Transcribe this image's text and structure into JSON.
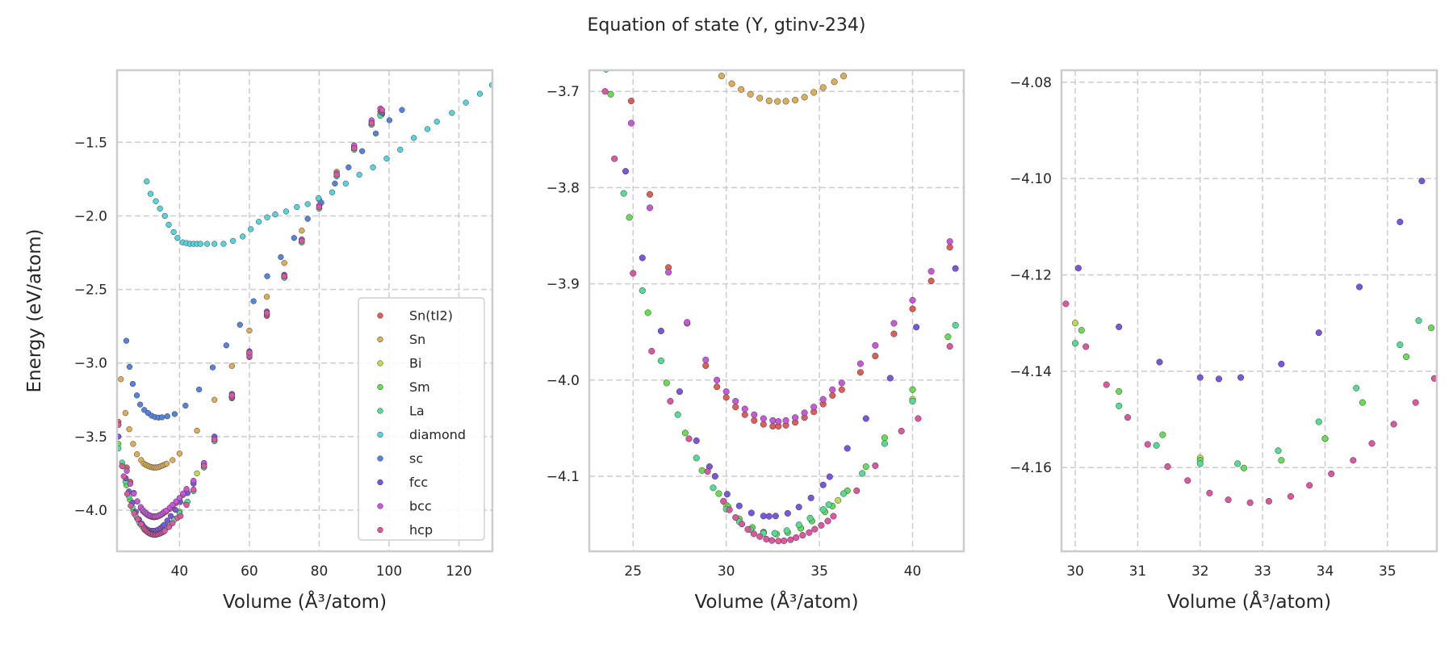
{
  "chart_data": {
    "type": "scatter",
    "title": "Equation of state (Y, gtinv-234)",
    "legend_placement": "lower-right (left panel)",
    "grid": true,
    "series": [
      {
        "name": "Sn(tI2)",
        "color": "#db5f57",
        "x": [
          22.5,
          24.9,
          25.9,
          26.9,
          27.9,
          28.9,
          29.5,
          30.0,
          30.5,
          31.0,
          31.5,
          32.0,
          32.5,
          32.8,
          33.2,
          33.7,
          34.2,
          34.7,
          35.2,
          35.7,
          36.2,
          37.2,
          38.0,
          39.0,
          40.0,
          41.0,
          42.0,
          44,
          47,
          50,
          55,
          60,
          65,
          70,
          75,
          80,
          85,
          90,
          95,
          97.5
        ],
        "y": [
          -3.4,
          -3.71,
          -3.807,
          -3.883,
          -3.941,
          -3.985,
          -4.007,
          -4.018,
          -4.028,
          -4.036,
          -4.042,
          -4.046,
          -4.048,
          -4.048,
          -4.047,
          -4.044,
          -4.039,
          -4.033,
          -4.025,
          -4.016,
          -4.01,
          -3.992,
          -3.975,
          -3.952,
          -3.926,
          -3.897,
          -3.862,
          -3.81,
          -3.69,
          -3.53,
          -3.24,
          -2.96,
          -2.68,
          -2.42,
          -2.17,
          -1.94,
          -1.72,
          -1.53,
          -1.36,
          -1.29
        ]
      },
      {
        "name": "Sn",
        "color": "#dbae57",
        "x": [
          23.2,
          24.5,
          25.6,
          26.7,
          27.8,
          29.0,
          29.75,
          30.3,
          30.8,
          31.3,
          31.8,
          32.3,
          32.75,
          33.2,
          33.7,
          34.2,
          34.7,
          35.2,
          35.8,
          36.3,
          38,
          40,
          45,
          50,
          55,
          60,
          65,
          70,
          75,
          80,
          85,
          90,
          95,
          98
        ],
        "y": [
          -3.11,
          -3.34,
          -3.45,
          -3.55,
          -3.62,
          -3.66,
          -3.684,
          -3.692,
          -3.698,
          -3.703,
          -3.707,
          -3.7098,
          -3.7104,
          -3.7102,
          -3.709,
          -3.706,
          -3.701,
          -3.696,
          -3.69,
          -3.684,
          -3.66,
          -3.615,
          -3.46,
          -3.25,
          -3.02,
          -2.78,
          -2.55,
          -2.32,
          -2.1,
          -1.89,
          -1.7,
          -1.53,
          -1.38,
          -1.31
        ]
      },
      {
        "name": "Bi",
        "color": "#b9db57",
        "x": [
          30,
          32,
          34,
          36,
          40,
          45,
          50,
          55,
          60,
          65,
          70,
          75,
          80,
          85,
          90,
          95,
          97.8
        ],
        "y": [
          -4.13,
          -4.158,
          -4.154,
          -4.125,
          -4.02,
          -3.75,
          -3.52,
          -3.23,
          -2.93,
          -2.67,
          -2.42,
          -2.18,
          -1.95,
          -1.73,
          -1.54,
          -1.38,
          -1.31
        ]
      },
      {
        "name": "Sm",
        "color": "#69db57",
        "x": [
          22.5,
          23.8,
          24.8,
          25.8,
          26.8,
          27.8,
          28.7,
          29.6,
          30.1,
          30.7,
          31.4,
          32.0,
          32.7,
          33.3,
          34.0,
          34.6,
          35.3,
          35.7,
          36.5,
          37.5,
          38.5,
          40.0,
          41.9,
          44,
          47,
          50,
          55,
          60,
          65,
          70,
          75,
          80,
          85,
          90,
          95,
          97.5
        ],
        "y": [
          -3.55,
          -3.703,
          -3.831,
          -3.93,
          -4.003,
          -4.055,
          -4.094,
          -4.118,
          -4.1315,
          -4.1442,
          -4.1532,
          -4.1585,
          -4.1601,
          -4.1585,
          -4.154,
          -4.1465,
          -4.137,
          -4.131,
          -4.115,
          -4.09,
          -4.06,
          -4.01,
          -3.955,
          -3.87,
          -3.71,
          -3.53,
          -3.23,
          -2.94,
          -2.67,
          -2.42,
          -2.18,
          -1.95,
          -1.73,
          -1.55,
          -1.38,
          -1.31
        ]
      },
      {
        "name": "La",
        "color": "#57db94",
        "x": [
          22.5,
          23.55,
          24.5,
          25.5,
          26.5,
          27.4,
          28.4,
          29.3,
          30.0,
          30.7,
          31.3,
          32.0,
          32.6,
          33.25,
          33.9,
          34.5,
          35.2,
          35.5,
          36.3,
          37.3,
          38.5,
          40.0,
          42.3,
          44,
          47,
          50,
          55,
          60,
          65,
          70,
          75,
          80,
          85,
          90,
          95,
          97.5
        ],
        "y": [
          -3.58,
          -3.677,
          -3.806,
          -3.907,
          -3.98,
          -4.036,
          -4.081,
          -4.112,
          -4.1342,
          -4.1472,
          -4.1554,
          -4.1592,
          -4.1592,
          -4.1565,
          -4.1505,
          -4.1435,
          -4.1345,
          -4.1295,
          -4.118,
          -4.097,
          -4.066,
          -4.022,
          -3.943,
          -3.87,
          -3.71,
          -3.53,
          -3.23,
          -2.94,
          -2.67,
          -2.42,
          -2.18,
          -1.95,
          -1.73,
          -1.55,
          -1.38,
          -1.32
        ]
      },
      {
        "name": "diamond",
        "color": "#57d3db",
        "x": [
          30.6,
          31.7,
          33.2,
          34.4,
          35.8,
          36.9,
          38.3,
          39.4,
          40.9,
          42,
          43,
          44,
          45,
          46,
          47.9,
          50,
          52.6,
          55.3,
          58.1,
          60.4,
          62.7,
          65.1,
          67.4,
          70.5,
          73.6,
          76.7,
          79.8,
          83.7,
          87.6,
          91.5,
          95.4,
          99.3,
          103.2,
          107.1,
          111,
          113.7,
          118,
          122,
          126,
          129.5
        ],
        "y": [
          -1.766,
          -1.85,
          -1.9,
          -1.95,
          -2.0,
          -2.06,
          -2.11,
          -2.15,
          -2.18,
          -2.185,
          -2.19,
          -2.19,
          -2.19,
          -2.19,
          -2.19,
          -2.19,
          -2.19,
          -2.17,
          -2.14,
          -2.09,
          -2.04,
          -2.01,
          -1.99,
          -1.97,
          -1.94,
          -1.92,
          -1.88,
          -1.84,
          -1.78,
          -1.72,
          -1.67,
          -1.61,
          -1.55,
          -1.47,
          -1.41,
          -1.36,
          -1.3,
          -1.23,
          -1.17,
          -1.11
        ]
      },
      {
        "name": "sc",
        "color": "#5784db",
        "x": [
          24.75,
          25.68,
          26.6,
          27.78,
          28.72,
          29.9,
          31,
          32,
          33,
          34,
          35,
          36.5,
          38.6,
          41.7,
          45.6,
          49.5,
          53.4,
          57.3,
          61.2,
          65.1,
          69,
          72.8,
          76.7,
          80.6,
          84.5,
          88.4,
          92.3,
          96.2,
          100.1,
          103.7
        ],
        "y": [
          -2.849,
          -3.026,
          -3.142,
          -3.22,
          -3.282,
          -3.319,
          -3.34,
          -3.358,
          -3.368,
          -3.371,
          -3.369,
          -3.362,
          -3.347,
          -3.29,
          -3.18,
          -3.03,
          -2.88,
          -2.74,
          -2.58,
          -2.41,
          -2.28,
          -2.15,
          -2.02,
          -1.91,
          -1.78,
          -1.67,
          -1.56,
          -1.44,
          -1.35,
          -1.28
        ]
      },
      {
        "name": "fcc",
        "color": "#7957db",
        "x": [
          22.5,
          24.6,
          25.5,
          26.5,
          27.5,
          28.4,
          29.1,
          29.4,
          30.05,
          30.7,
          31.35,
          32.0,
          32.3,
          32.65,
          33.3,
          33.9,
          34.55,
          35.2,
          35.55,
          36.5,
          37.5,
          38.8,
          40.2,
          42.3,
          44,
          47,
          50,
          55,
          60,
          65,
          70,
          75,
          80,
          85,
          90,
          95,
          98
        ],
        "y": [
          -3.5,
          -3.783,
          -3.873,
          -3.949,
          -4.012,
          -4.063,
          -4.09,
          -4.1,
          -4.1186,
          -4.1308,
          -4.1381,
          -4.1413,
          -4.1416,
          -4.1413,
          -4.1385,
          -4.132,
          -4.1225,
          -4.109,
          -4.1005,
          -4.071,
          -4.04,
          -3.998,
          -3.945,
          -3.884,
          -3.82,
          -3.68,
          -3.5,
          -3.21,
          -2.92,
          -2.65,
          -2.4,
          -2.16,
          -1.93,
          -1.72,
          -1.54,
          -1.37,
          -1.3
        ]
      },
      {
        "name": "bcc",
        "color": "#c957db",
        "x": [
          22.5,
          24.9,
          25.9,
          26.9,
          27.9,
          28.9,
          29.5,
          30.0,
          30.5,
          31.0,
          31.5,
          32.0,
          32.5,
          32.8,
          33.2,
          33.7,
          34.2,
          34.7,
          35.2,
          35.7,
          36.2,
          37.2,
          38.0,
          39.0,
          40.0,
          41.0,
          42.0,
          44,
          47,
          50,
          55,
          60,
          65,
          70,
          75,
          80,
          85,
          90,
          95,
          97.5
        ],
        "y": [
          -3.42,
          -3.733,
          -3.821,
          -3.888,
          -3.94,
          -3.979,
          -4.0,
          -4.012,
          -4.022,
          -4.03,
          -4.036,
          -4.04,
          -4.042,
          -4.043,
          -4.042,
          -4.039,
          -4.034,
          -4.028,
          -4.02,
          -4.01,
          -4.003,
          -3.983,
          -3.964,
          -3.941,
          -3.917,
          -3.887,
          -3.856,
          -3.8,
          -3.68,
          -3.52,
          -3.23,
          -2.95,
          -2.67,
          -2.41,
          -2.16,
          -1.93,
          -1.71,
          -1.52,
          -1.35,
          -1.27
        ]
      },
      {
        "name": "hcp",
        "color": "#db579e",
        "x": [
          22.5,
          23.5,
          24.0,
          25.0,
          26.0,
          27.0,
          28.0,
          29.0,
          29.85,
          30.17,
          30.5,
          30.84,
          31.16,
          31.48,
          31.8,
          32.15,
          32.45,
          32.8,
          33.1,
          33.45,
          33.75,
          34.1,
          34.45,
          34.75,
          35.1,
          35.45,
          35.75,
          37.0,
          38.0,
          39.4,
          40.3,
          42.0,
          44,
          47,
          50,
          55,
          60,
          65,
          70,
          75,
          80,
          85,
          90,
          95,
          98
        ],
        "y": [
          -3.42,
          -3.7,
          -3.77,
          -3.889,
          -3.97,
          -4.022,
          -4.061,
          -4.095,
          -4.126,
          -4.1349,
          -4.1428,
          -4.1496,
          -4.1552,
          -4.1598,
          -4.1627,
          -4.1653,
          -4.1667,
          -4.1673,
          -4.167,
          -4.166,
          -4.1637,
          -4.1613,
          -4.1585,
          -4.155,
          -4.151,
          -4.1465,
          -4.1415,
          -4.115,
          -4.089,
          -4.053,
          -4.04,
          -3.965,
          -3.86,
          -3.7,
          -3.52,
          -3.22,
          -2.93,
          -2.66,
          -2.41,
          -2.17,
          -1.94,
          -1.72,
          -1.54,
          -1.37,
          -1.28
        ]
      }
    ],
    "panels": [
      {
        "xlabel": "Volume (Å³/atom)",
        "ylabel": "Energy (eV/atom)",
        "xlim": [
          22.1,
          129.6
        ],
        "ylim": [
          -4.28,
          -1.01
        ],
        "xticks": [
          40,
          60,
          80,
          100,
          120
        ],
        "xtick_labels": [
          "40",
          "60",
          "80",
          "100",
          "120"
        ],
        "yticks": [
          -1.5,
          -2.0,
          -2.5,
          -3.0,
          -3.5,
          -4.0
        ],
        "ytick_labels": [
          "−1.5",
          "−2.0",
          "−2.5",
          "−3.0",
          "−3.5",
          "−4.0"
        ],
        "legend": true
      },
      {
        "xlabel": "Volume (Å³/atom)",
        "ylabel": "",
        "xlim": [
          22.65,
          42.75
        ],
        "ylim": [
          -4.178,
          -3.678
        ],
        "xticks": [
          25,
          30,
          35,
          40
        ],
        "xtick_labels": [
          "25",
          "30",
          "35",
          "40"
        ],
        "yticks": [
          -3.7,
          -3.8,
          -3.9,
          -4.0,
          -4.1
        ],
        "ytick_labels": [
          "−3.7",
          "−3.8",
          "−3.9",
          "−4.0",
          "−4.1"
        ],
        "legend": false
      },
      {
        "xlabel": "Volume (Å³/atom)",
        "ylabel": "",
        "xlim": [
          29.78,
          35.79
        ],
        "ylim": [
          -4.1774,
          -4.0775
        ],
        "xticks": [
          30,
          31,
          32,
          33,
          34,
          35
        ],
        "xtick_labels": [
          "30",
          "31",
          "32",
          "33",
          "34",
          "35"
        ],
        "yticks": [
          -4.08,
          -4.1,
          -4.12,
          -4.14,
          -4.16
        ],
        "ytick_labels": [
          "−4.08",
          "−4.10",
          "−4.12",
          "−4.14",
          "−4.16"
        ],
        "legend": false
      }
    ]
  }
}
